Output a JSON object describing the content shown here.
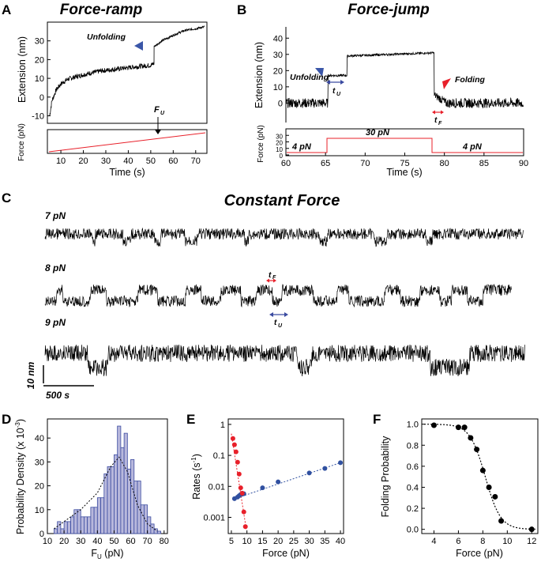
{
  "panels": {
    "A": {
      "letter": "A",
      "title": "Force-ramp",
      "annotation": "Unfolding",
      "fu_label": "F",
      "fu_sub": "U",
      "ylabel_top": "Extension (nm)",
      "ylabel_bottom": "Force (pN)",
      "xlabel": "Time (s)",
      "yticks": [
        "-10",
        "0",
        "10",
        "20",
        "30"
      ],
      "xticks": [
        "10",
        "20",
        "30",
        "40",
        "50",
        "60",
        "70"
      ]
    },
    "B": {
      "letter": "B",
      "title": "Force-jump",
      "annotation_unfold": "Unfolding",
      "annotation_fold": "Folding",
      "tu_label": "t",
      "tu_sub": "U",
      "tf_label": "t",
      "tf_sub": "F",
      "ylabel_top": "Extension (nm)",
      "ylabel_bottom": "Force (pN)",
      "xlabel": "Time (s)",
      "yticks": [
        "0",
        "10",
        "20",
        "30",
        "40"
      ],
      "yticks_force": [
        "0",
        "10",
        "20",
        "30"
      ],
      "xticks": [
        "60",
        "65",
        "70",
        "75",
        "80",
        "85",
        "90"
      ],
      "force_labels": [
        "4 pN",
        "30 pN",
        "4 pN"
      ]
    },
    "C": {
      "letter": "C",
      "title": "Constant Force",
      "traces": [
        "7 pN",
        "8 pN",
        "9 pN"
      ],
      "tf_label": "t",
      "tf_sub": "F",
      "tu_label": "t",
      "tu_sub": "U",
      "scale_y": "10 nm",
      "scale_x": "500 s"
    },
    "D": {
      "letter": "D",
      "ylabel": "Probability Density  (x 10",
      "ylabel_exp": "-3",
      "ylabel_end": ")",
      "xlabel_main": "F",
      "xlabel_sub": "U",
      "xlabel_unit": " (pN)",
      "yticks": [
        "0",
        "10",
        "20",
        "30",
        "40"
      ],
      "xticks": [
        "10",
        "20",
        "30",
        "40",
        "50",
        "60",
        "70",
        "80"
      ]
    },
    "E": {
      "letter": "E",
      "ylabel": "Rates (s",
      "ylabel_exp": "-1",
      "ylabel_end": ")",
      "xlabel": "Force (pN)",
      "yticks": [
        "0.001",
        "0.01",
        "0.1",
        "1"
      ],
      "xticks": [
        "5",
        "10",
        "15",
        "20",
        "25",
        "30",
        "35",
        "40"
      ]
    },
    "F": {
      "letter": "F",
      "ylabel": "Folding Probability",
      "xlabel": "Force (pN)",
      "yticks": [
        "0.0",
        "0.2",
        "0.4",
        "0.6",
        "0.8",
        "1.0"
      ],
      "xticks": [
        "4",
        "6",
        "8",
        "10",
        "12"
      ]
    }
  },
  "colors": {
    "unfold_marker": "#3a56a8",
    "fold_marker": "#e8202a",
    "force_line": "#e8202a",
    "hist_fill": "#b8b8dc",
    "hist_edge": "#3a4aa0",
    "rate_blue": "#3050a0",
    "rate_red": "#e8202a"
  },
  "chart_data": [
    {
      "id": "A",
      "type": "line",
      "title": "Force-ramp",
      "xlabel": "Time (s)",
      "ylabel": "Extension (nm)",
      "xlim": [
        4,
        75
      ],
      "ylim": [
        -14,
        40
      ],
      "series": [
        {
          "name": "extension",
          "x": [
            5,
            6,
            8,
            10,
            13,
            17,
            22,
            28,
            35,
            42,
            50,
            51.5
          ],
          "y": [
            -10,
            -2,
            4,
            7,
            9.5,
            11,
            12.5,
            14,
            15,
            16,
            17,
            18
          ]
        },
        {
          "name": "extension-unfolded",
          "x": [
            51.5,
            55,
            60,
            65,
            70,
            74
          ],
          "y": [
            27,
            30,
            33,
            35.5,
            36.5,
            37.5
          ]
        }
      ],
      "force_panel": {
        "ylabel": "Force (pN)",
        "x": [
          5,
          74
        ],
        "y": [
          0,
          18
        ]
      }
    },
    {
      "id": "B",
      "type": "line",
      "title": "Force-jump",
      "xlabel": "Time (s)",
      "ylabel": "Extension (nm)",
      "xlim": [
        60,
        90
      ],
      "ylim": [
        -12,
        45
      ],
      "series": [
        {
          "name": "extension",
          "x": [
            60,
            65.3,
            65.3,
            67.7,
            67.7,
            78.7,
            78.7,
            79.5,
            80.5,
            90
          ],
          "y": [
            0,
            0,
            17,
            17,
            29,
            31,
            5,
            3,
            0,
            0
          ]
        }
      ],
      "force_panel": {
        "ylabel": "Force (pN)",
        "ylim": [
          0,
          40
        ],
        "x": [
          60,
          65.5,
          65.5,
          78.7,
          78.7,
          90
        ],
        "y": [
          4,
          4,
          30,
          30,
          4,
          4
        ]
      }
    },
    {
      "id": "C",
      "type": "line",
      "title": "Constant Force",
      "series": [
        {
          "name": "7 pN",
          "x": [],
          "y": []
        },
        {
          "name": "8 pN",
          "x": [],
          "y": []
        },
        {
          "name": "9 pN",
          "x": [],
          "y": []
        }
      ]
    },
    {
      "id": "D",
      "type": "bar",
      "xlabel": "F_U (pN)",
      "ylabel": "Probability Density (x 10^-3)",
      "xlim": [
        10,
        82
      ],
      "ylim": [
        0,
        48
      ],
      "bin_edges": [
        14,
        16,
        18,
        20,
        22,
        24,
        26,
        28,
        30,
        32,
        34,
        36,
        38,
        40,
        42,
        44,
        46,
        48,
        50,
        52,
        54,
        56,
        58,
        60,
        62,
        64,
        66,
        68,
        70,
        72,
        74,
        76,
        78
      ],
      "values": [
        2,
        5,
        2,
        5,
        5,
        7,
        10,
        10,
        7,
        7,
        7,
        11,
        11,
        15,
        15,
        25,
        28,
        28,
        33,
        45,
        36,
        42,
        27,
        31,
        22,
        22,
        12,
        12,
        7,
        4,
        2,
        1
      ],
      "fit": {
        "x": [
          14,
          20,
          30,
          40,
          48,
          53,
          58,
          64,
          70,
          76
        ],
        "y": [
          2,
          5,
          10,
          17,
          28,
          32,
          26,
          12,
          4,
          1
        ]
      }
    },
    {
      "id": "E",
      "type": "scatter",
      "xlabel": "Force (pN)",
      "ylabel": "Rates (s^-1)",
      "xlim": [
        4,
        41
      ],
      "ylim": [
        0.0003,
        1.5
      ],
      "series": [
        {
          "name": "unfolding",
          "x": [
            6,
            7,
            7.5,
            8,
            8.5,
            9,
            15,
            20,
            30,
            35,
            40
          ],
          "y": [
            0.004,
            0.0045,
            0.005,
            0.0055,
            0.006,
            0.0058,
            0.009,
            0.014,
            0.027,
            0.038,
            0.058
          ]
        },
        {
          "name": "folding",
          "x": [
            5.5,
            6,
            6.5,
            7,
            7.5,
            8,
            8.5,
            9,
            9.5
          ],
          "y": [
            0.35,
            0.22,
            0.13,
            0.06,
            0.025,
            0.009,
            0.006,
            0.0015,
            0.0005
          ]
        }
      ]
    },
    {
      "id": "F",
      "type": "scatter",
      "xlabel": "Force (pN)",
      "ylabel": "Folding Probability",
      "xlim": [
        3,
        12.5
      ],
      "ylim": [
        -0.04,
        1.05
      ],
      "series": [
        {
          "name": "data",
          "x": [
            4,
            6,
            6.5,
            7,
            7.5,
            8,
            8.5,
            9,
            9.5,
            12
          ],
          "y": [
            0.99,
            0.97,
            0.97,
            0.87,
            0.76,
            0.56,
            0.4,
            0.31,
            0.08,
            0.0
          ]
        }
      ],
      "fit": {
        "type": "sigmoid",
        "x0": 8.2,
        "k": 1.6
      }
    }
  ]
}
